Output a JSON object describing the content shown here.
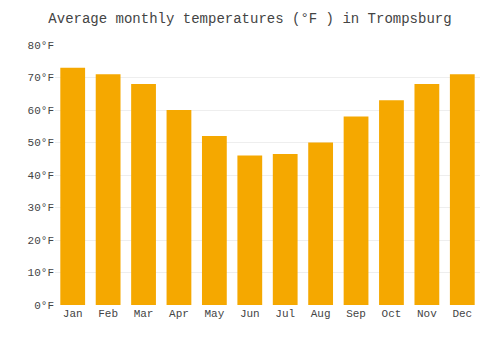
{
  "chart_data": {
    "type": "bar",
    "title": "Average monthly temperatures (°F ) in Trompsburg",
    "categories": [
      "Jan",
      "Feb",
      "Mar",
      "Apr",
      "May",
      "Jun",
      "Jul",
      "Aug",
      "Sep",
      "Oct",
      "Nov",
      "Dec"
    ],
    "values": [
      73,
      71,
      68,
      60,
      52,
      46,
      46.5,
      50,
      58,
      63,
      68,
      71
    ],
    "color": "#F5A800",
    "ylim": [
      0,
      80
    ],
    "yticks": [
      {
        "value": 0,
        "label": "0°F"
      },
      {
        "value": 10,
        "label": "10°F"
      },
      {
        "value": 20,
        "label": "20°F"
      },
      {
        "value": 30,
        "label": "30°F"
      },
      {
        "value": 40,
        "label": "40°F"
      },
      {
        "value": 50,
        "label": "50°F"
      },
      {
        "value": 60,
        "label": "60°F"
      },
      {
        "value": 70,
        "label": "70°F"
      },
      {
        "value": 80,
        "label": "80°F"
      }
    ],
    "grid": true
  }
}
